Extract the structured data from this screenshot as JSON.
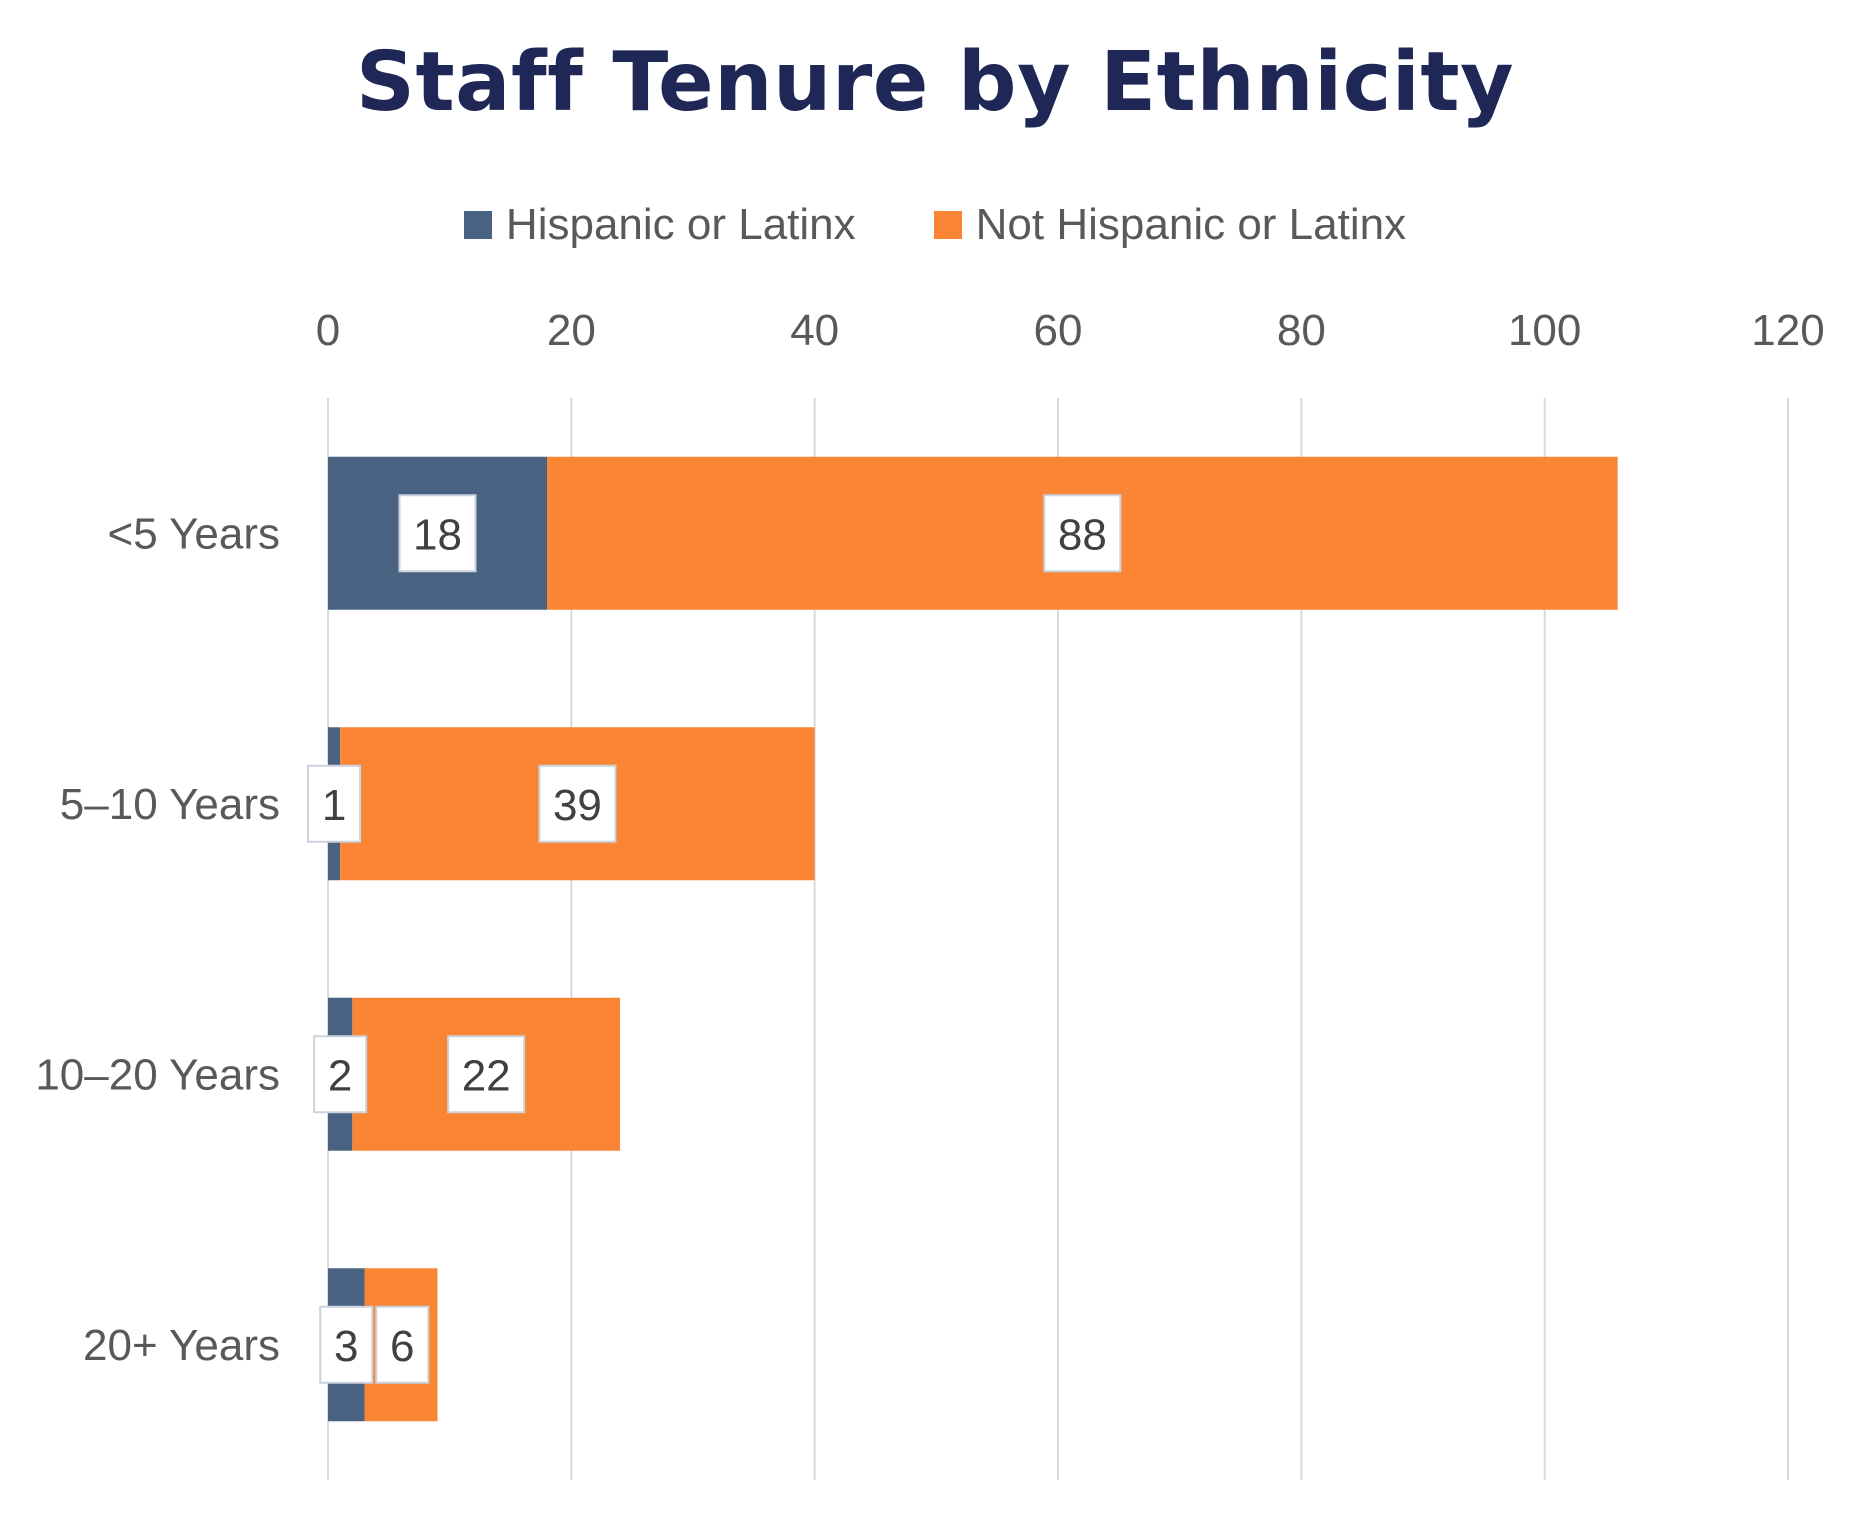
{
  "chart_data": {
    "type": "bar",
    "orientation": "horizontal",
    "stacked": true,
    "title": "Staff Tenure by Ethnicity",
    "categories": [
      "<5 Years",
      "5–10 Years",
      "10–20 Years",
      "20+ Years"
    ],
    "series": [
      {
        "name": "Hispanic or Latinx",
        "color": "#4a6282",
        "values": [
          18,
          1,
          2,
          3
        ]
      },
      {
        "name": "Not Hispanic or Latinx",
        "color": "#f98535",
        "values": [
          88,
          39,
          22,
          6
        ]
      }
    ],
    "data_labels": {
      "Hispanic or Latinx": [
        "18",
        "1",
        "2",
        "3"
      ],
      "Not Hispanic or Latinx": [
        "88",
        "39",
        "22",
        "6"
      ]
    },
    "x_ticks": [
      "0",
      "20",
      "40",
      "60",
      "80",
      "100",
      "120"
    ],
    "xlim": [
      0,
      120
    ],
    "x_axis_position": "top",
    "gridlines": "vertical",
    "legend_position": "top",
    "title_color": "#1e2756",
    "text_color": "#595959",
    "gridline_color": "#d9d9d9"
  }
}
